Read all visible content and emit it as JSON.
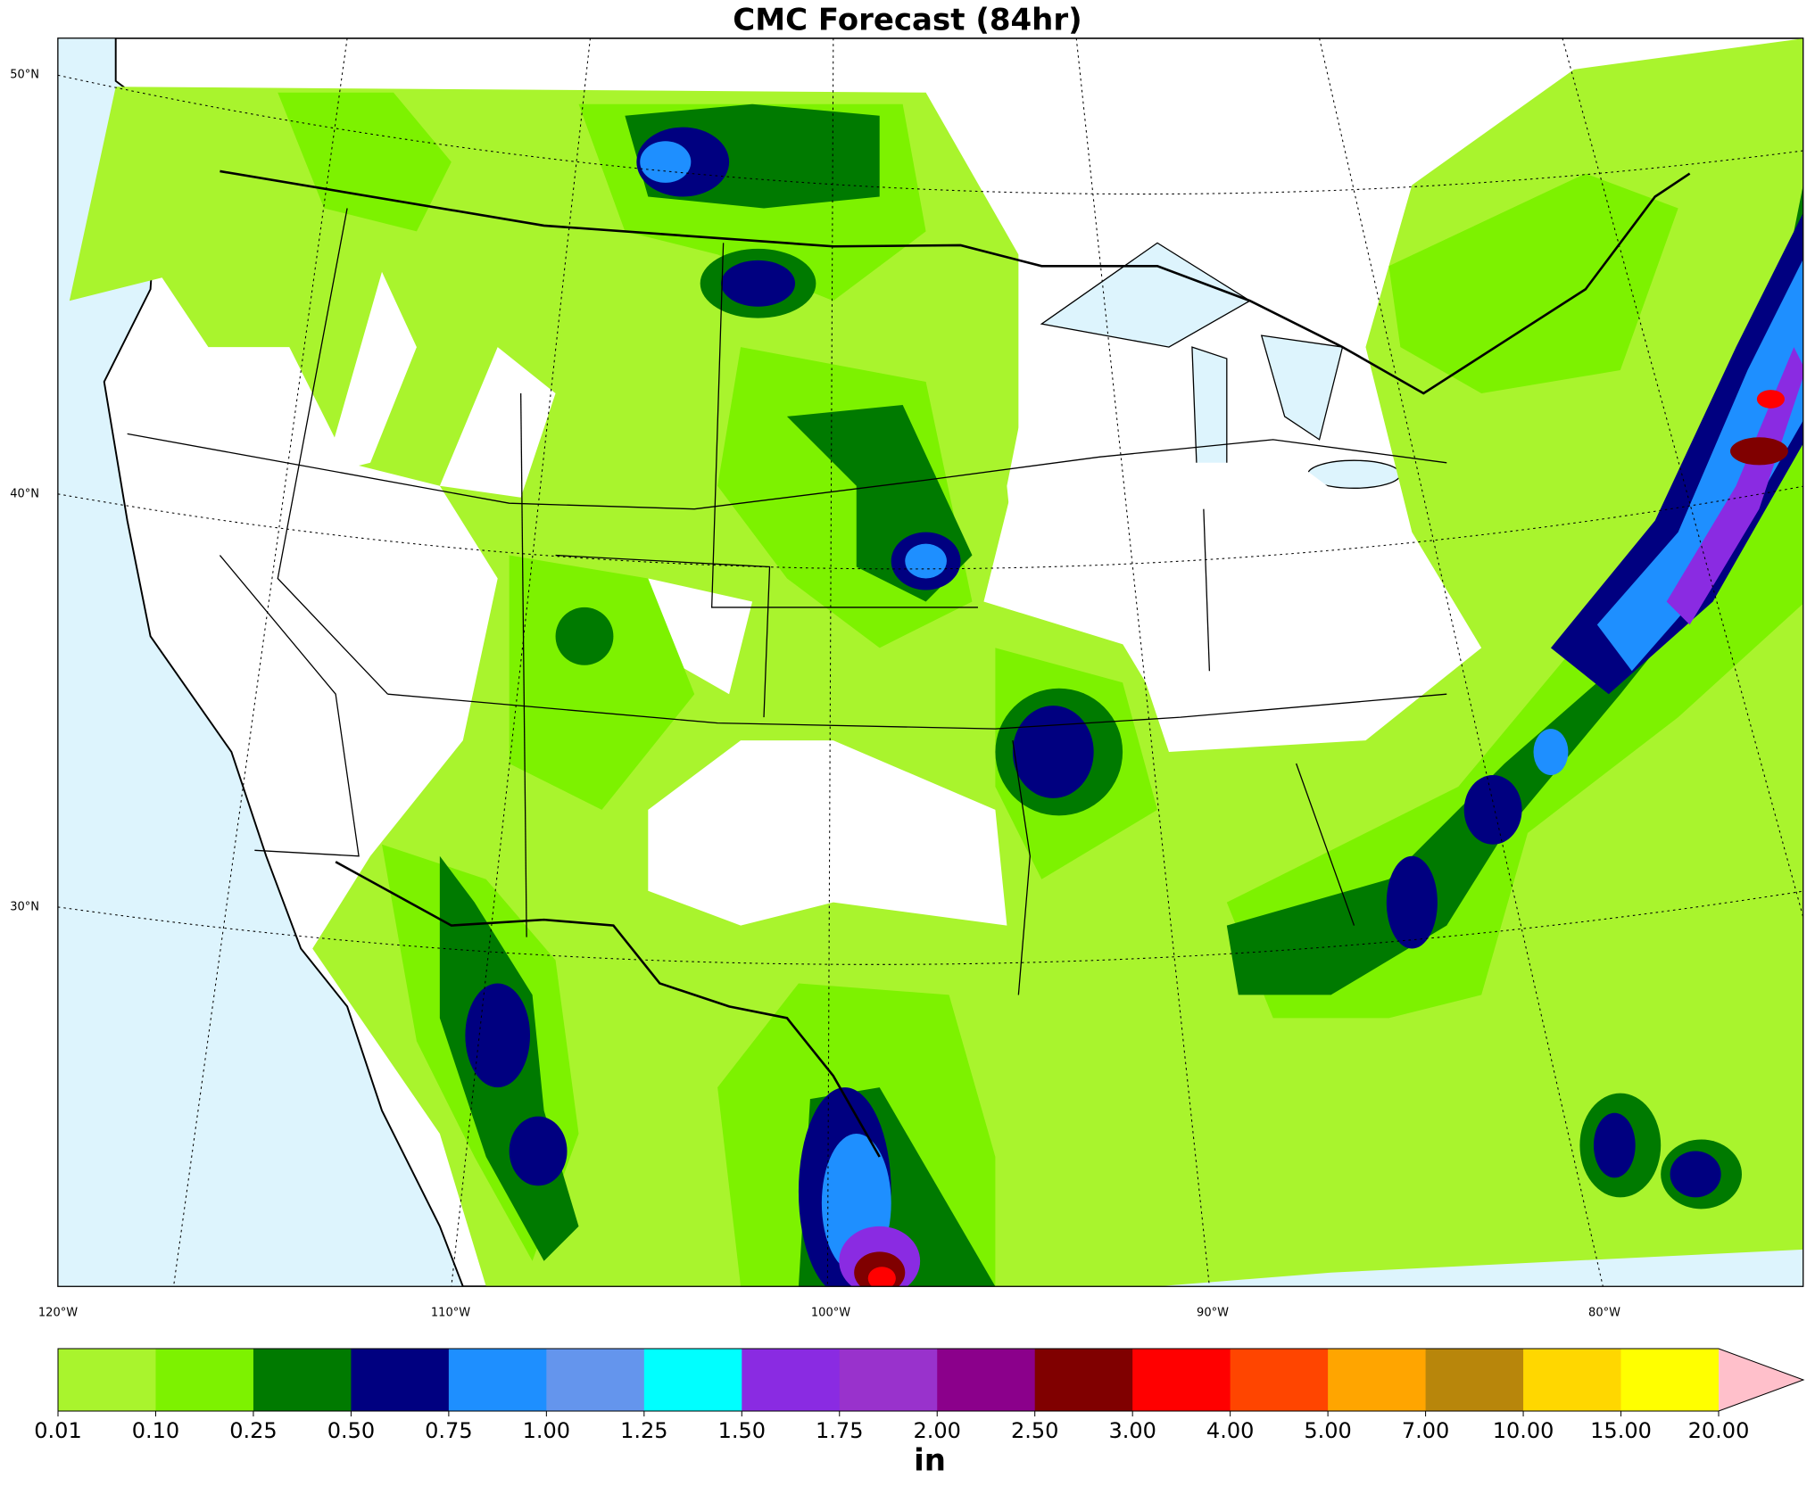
{
  "chart_data": {
    "type": "contour-map",
    "title": "CMC Forecast (84hr)",
    "lat_labels": [
      "50°N",
      "40°N",
      "30°N"
    ],
    "lon_labels": [
      "120°W",
      "110°W",
      "100°W",
      "90°W",
      "80°W"
    ],
    "colorbar": {
      "label": "in",
      "ticks": [
        {
          "value": 0.01,
          "label": "0.01"
        },
        {
          "value": 0.1,
          "label": "0.10"
        },
        {
          "value": 0.25,
          "label": "0.25"
        },
        {
          "value": 0.5,
          "label": "0.50"
        },
        {
          "value": 0.75,
          "label": "0.75"
        },
        {
          "value": 1,
          "label": "1.00"
        },
        {
          "value": 1.25,
          "label": "1.25"
        },
        {
          "value": 1.5,
          "label": "1.50"
        },
        {
          "value": 1.75,
          "label": "1.75"
        },
        {
          "value": 2,
          "label": "2.00"
        },
        {
          "value": 2.5,
          "label": "2.50"
        },
        {
          "value": 3,
          "label": "3.00"
        },
        {
          "value": 4,
          "label": "4.00"
        },
        {
          "value": 5,
          "label": "5.00"
        },
        {
          "value": 7,
          "label": "7.00"
        },
        {
          "value": 10,
          "label": "10.00"
        },
        {
          "value": 15,
          "label": "15.00"
        },
        {
          "value": 20,
          "label": "20.00"
        }
      ],
      "colors": [
        "#a9f42d",
        "#7df200",
        "#007a00",
        "#000080",
        "#1e8fff",
        "#6495ed",
        "#00ffff",
        "#8a2be2",
        "#9932cc",
        "#8b008b",
        "#800000",
        "#ff0000",
        "#ff4500",
        "#ffa500",
        "#b8860b",
        "#ffd700",
        "#ffff00"
      ],
      "extend_color": "#ffc0cb"
    }
  }
}
